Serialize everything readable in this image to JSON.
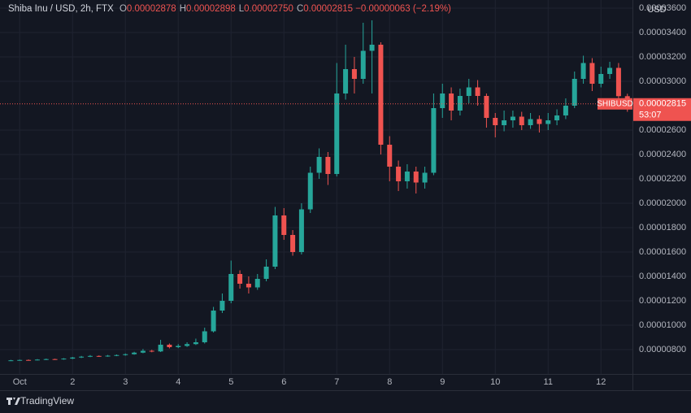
{
  "chart_data": {
    "type": "candlestick",
    "title": "Shiba Inu / USD, 2h, FTX",
    "legend": {
      "keys": [
        "O",
        "H",
        "L",
        "C"
      ],
      "values": [
        2.878e-05,
        2.898e-05,
        2.75e-05,
        2.815e-05
      ],
      "value_labels": [
        "0.00002878",
        "0.00002898",
        "0.00002750",
        "0.00002815"
      ],
      "change": {
        "value": -6.3e-07,
        "label": "−0.00000063"
      },
      "change_percent": {
        "value": -2.19,
        "label": "(−2.19%)"
      }
    },
    "currency": "USD",
    "symbol": "SHIBUSD",
    "last_price": {
      "value": 2.815e-05,
      "label": "0.00002815"
    },
    "countdown": "53:07",
    "brand": "TradingView",
    "up_color": "#26a69a",
    "down_color": "#ef5350",
    "grid": true,
    "categories": [
      null,
      "Oct",
      null,
      null,
      null,
      null,
      null,
      "2",
      null,
      null,
      null,
      null,
      null,
      "3",
      null,
      null,
      null,
      null,
      null,
      "4",
      null,
      null,
      null,
      null,
      null,
      "5",
      null,
      null,
      null,
      null,
      null,
      "6",
      null,
      null,
      null,
      null,
      null,
      "7",
      null,
      null,
      null,
      null,
      null,
      "8",
      null,
      null,
      null,
      null,
      null,
      "9",
      null,
      null,
      null,
      null,
      null,
      "10",
      null,
      null,
      null,
      null,
      null,
      "11",
      null,
      null,
      null,
      null,
      null,
      "12",
      null,
      null,
      null
    ],
    "open": [
      7.1e-06,
      7.12e-06,
      7.15e-06,
      7.14e-06,
      7.18e-06,
      7.22e-06,
      7.2e-06,
      7.26e-06,
      7.35e-06,
      7.42e-06,
      7.48e-06,
      7.45e-06,
      7.5e-06,
      7.55e-06,
      7.62e-06,
      7.75e-06,
      7.9e-06,
      7.85e-06,
      8.4e-06,
      8.2e-06,
      8.3e-06,
      8.45e-06,
      8.6e-06,
      9.5e-06,
      1.12e-05,
      1.2e-05,
      1.42e-05,
      1.34e-05,
      1.31e-05,
      1.38e-05,
      1.48e-05,
      1.9e-05,
      1.74e-05,
      1.6e-05,
      1.95e-05,
      2.25e-05,
      2.38e-05,
      2.24e-05,
      2.9e-05,
      3.1e-05,
      3.02e-05,
      3.25e-05,
      3.3e-05,
      2.48e-05,
      2.3e-05,
      2.18e-05,
      2.26e-05,
      2.17e-05,
      2.25e-05,
      2.78e-05,
      2.9e-05,
      2.76e-05,
      2.88e-05,
      2.95e-05,
      2.88e-05,
      2.7e-05,
      2.64e-05,
      2.68e-05,
      2.71e-05,
      2.64e-05,
      2.69e-05,
      2.65e-05,
      2.68e-05,
      2.72e-05,
      2.8e-05,
      3.02e-05,
      3.15e-05,
      2.98e-05,
      3.06e-05,
      3.11e-05,
      2.878e-05
    ],
    "high": [
      7.16e-06,
      7.18e-06,
      7.19e-06,
      7.22e-06,
      7.26e-06,
      7.25e-06,
      7.3e-06,
      7.4e-06,
      7.48e-06,
      7.55e-06,
      7.52e-06,
      7.56e-06,
      7.6e-06,
      7.68e-06,
      7.82e-06,
      8.05e-06,
      7.98e-06,
      8.8e-06,
      8.5e-06,
      8.45e-06,
      8.6e-06,
      8.9e-06,
      9.8e-06,
      1.15e-05,
      1.26e-05,
      1.53e-05,
      1.45e-05,
      1.4e-05,
      1.42e-05,
      1.54e-05,
      1.97e-05,
      1.96e-05,
      1.78e-05,
      2e-05,
      2.3e-05,
      2.45e-05,
      2.42e-05,
      3.15e-05,
      3.3e-05,
      3.2e-05,
      3.48e-05,
      3.5e-05,
      3.32e-05,
      2.55e-05,
      2.35e-05,
      2.32e-05,
      2.3e-05,
      2.3e-05,
      2.9e-05,
      2.98e-05,
      2.95e-05,
      2.94e-05,
      3.02e-05,
      3.01e-05,
      2.9e-05,
      2.74e-05,
      2.76e-05,
      2.76e-05,
      2.75e-05,
      2.74e-05,
      2.72e-05,
      2.74e-05,
      2.77e-05,
      2.86e-05,
      3.08e-05,
      3.21e-05,
      3.19e-05,
      3.12e-05,
      3.16e-05,
      3.15e-05,
      2.898e-05
    ],
    "low": [
      7.06e-06,
      7.09e-06,
      7.1e-06,
      7.11e-06,
      7.15e-06,
      7.16e-06,
      7.17e-06,
      7.22e-06,
      7.31e-06,
      7.38e-06,
      7.4e-06,
      7.41e-06,
      7.46e-06,
      7.5e-06,
      7.58e-06,
      7.7e-06,
      7.78e-06,
      7.8e-06,
      8.1e-06,
      8.12e-06,
      8.22e-06,
      8.38e-06,
      8.5e-06,
      9.4e-06,
      1.1e-05,
      1.18e-05,
      1.3e-05,
      1.26e-05,
      1.29e-05,
      1.36e-05,
      1.46e-05,
      1.7e-05,
      1.57e-05,
      1.58e-05,
      1.92e-05,
      2.2e-05,
      2.15e-05,
      2.22e-05,
      2.85e-05,
      2.9e-05,
      2.98e-05,
      2.9e-05,
      2.4e-05,
      2.18e-05,
      2.1e-05,
      2.12e-05,
      2.08e-05,
      2.12e-05,
      2.23e-05,
      2.7e-05,
      2.68e-05,
      2.72e-05,
      2.82e-05,
      2.8e-05,
      2.62e-05,
      2.54e-05,
      2.59e-05,
      2.62e-05,
      2.6e-05,
      2.61e-05,
      2.58e-05,
      2.6e-05,
      2.64e-05,
      2.69e-05,
      2.78e-05,
      2.98e-05,
      2.92e-05,
      2.95e-05,
      3.02e-05,
      2.85e-05,
      2.75e-05
    ],
    "close": [
      7.12e-06,
      7.15e-06,
      7.14e-06,
      7.18e-06,
      7.22e-06,
      7.2e-06,
      7.26e-06,
      7.35e-06,
      7.42e-06,
      7.48e-06,
      7.45e-06,
      7.5e-06,
      7.55e-06,
      7.62e-06,
      7.75e-06,
      7.9e-06,
      7.85e-06,
      8.4e-06,
      8.2e-06,
      8.3e-06,
      8.45e-06,
      8.6e-06,
      9.5e-06,
      1.12e-05,
      1.2e-05,
      1.42e-05,
      1.34e-05,
      1.31e-05,
      1.38e-05,
      1.48e-05,
      1.9e-05,
      1.74e-05,
      1.6e-05,
      1.95e-05,
      2.25e-05,
      2.38e-05,
      2.24e-05,
      2.9e-05,
      3.1e-05,
      3.02e-05,
      3.25e-05,
      3.3e-05,
      2.48e-05,
      2.3e-05,
      2.18e-05,
      2.26e-05,
      2.17e-05,
      2.25e-05,
      2.78e-05,
      2.9e-05,
      2.76e-05,
      2.88e-05,
      2.95e-05,
      2.88e-05,
      2.7e-05,
      2.64e-05,
      2.68e-05,
      2.71e-05,
      2.64e-05,
      2.69e-05,
      2.65e-05,
      2.68e-05,
      2.72e-05,
      2.8e-05,
      3.02e-05,
      3.15e-05,
      2.98e-05,
      3.06e-05,
      3.11e-05,
      2.878e-05,
      2.815e-05
    ],
    "ylim": [
      6e-06,
      3.66e-05
    ],
    "yticks": [
      {
        "value": 8e-06,
        "label": "0.00000800"
      },
      {
        "value": 1e-05,
        "label": "0.00001000"
      },
      {
        "value": 1.2e-05,
        "label": "0.00001200"
      },
      {
        "value": 1.4e-05,
        "label": "0.00001400"
      },
      {
        "value": 1.6e-05,
        "label": "0.00001600"
      },
      {
        "value": 1.8e-05,
        "label": "0.00001800"
      },
      {
        "value": 2e-05,
        "label": "0.00002000"
      },
      {
        "value": 2.2e-05,
        "label": "0.00002200"
      },
      {
        "value": 2.4e-05,
        "label": "0.00002400"
      },
      {
        "value": 2.6e-05,
        "label": "0.00002600"
      },
      {
        "value": 3e-05,
        "label": "0.00003000"
      },
      {
        "value": 3.2e-05,
        "label": "0.00003200"
      },
      {
        "value": 3.4e-05,
        "label": "0.00003400"
      },
      {
        "value": 3.6e-05,
        "label": "0.00003600"
      }
    ]
  }
}
